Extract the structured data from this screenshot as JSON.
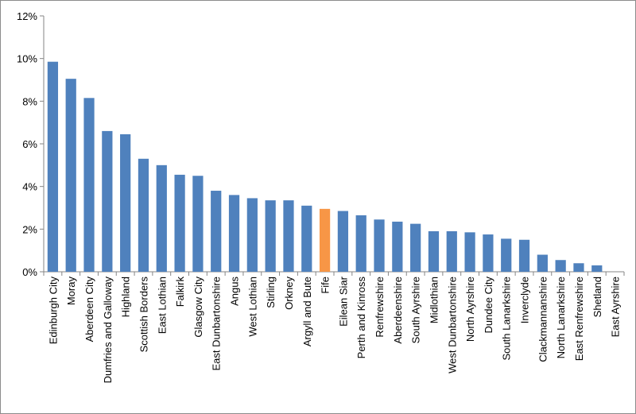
{
  "chart_data": {
    "type": "bar",
    "title": "",
    "xlabel": "",
    "ylabel": "",
    "ylim": [
      0,
      12
    ],
    "y_ticks": [
      0,
      2,
      4,
      6,
      8,
      10,
      12
    ],
    "y_tick_format": "percent",
    "grid": false,
    "legend": "none",
    "bar_color": "#4F81BD",
    "highlight_color": "#F79646",
    "highlight_category": "Fife",
    "categories": [
      "Edinburgh City",
      "Moray",
      "Aberdeen City",
      "Dumfries and Galloway",
      "Highland",
      "Scottish Borders",
      "East Lothian",
      "Falkirk",
      "Glasgow City",
      "East Dunbartonshire",
      "Angus",
      "West Lothian",
      "Stirling",
      "Orkney",
      "Argyll and Bute",
      "Fife",
      "Eilean Siar",
      "Perth and Kinross",
      "Renfrewshire",
      "Aberdeenshire",
      "South Ayrshire",
      "Midlothian",
      "West Dunbartonshire",
      "North Ayrshire",
      "Dundee City",
      "South Lanarkshire",
      "Inverclyde",
      "Clackmannanshire",
      "North Lanarkshire",
      "East Renfrewshire",
      "Shetland",
      "East Ayrshire"
    ],
    "values": [
      9.85,
      9.05,
      8.15,
      6.6,
      6.45,
      5.3,
      5.0,
      4.55,
      4.5,
      3.8,
      3.6,
      3.45,
      3.35,
      3.35,
      3.1,
      2.95,
      2.85,
      2.65,
      2.45,
      2.35,
      2.25,
      1.9,
      1.9,
      1.85,
      1.75,
      1.55,
      1.5,
      0.8,
      0.55,
      0.4,
      0.3,
      0.0
    ]
  }
}
